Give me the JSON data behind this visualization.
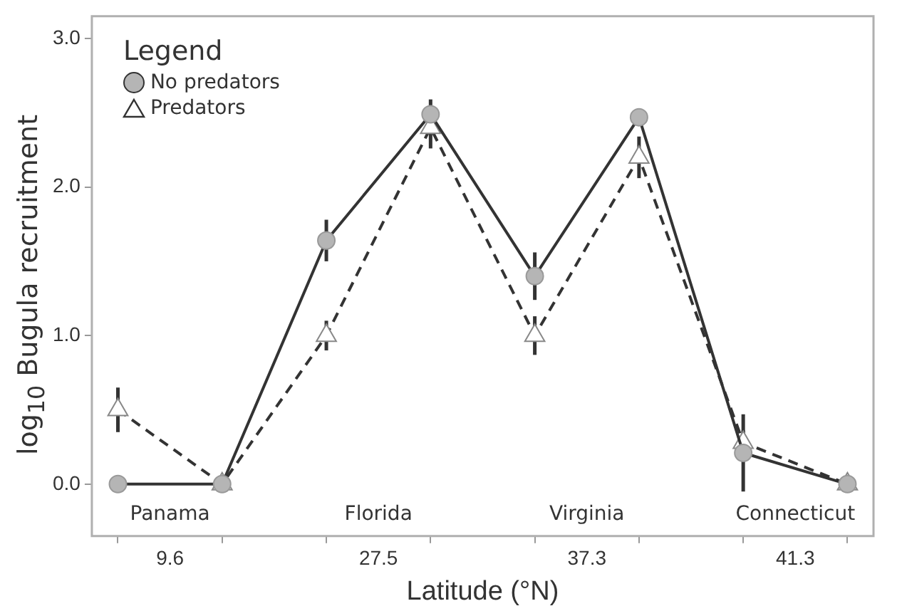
{
  "chart_data": {
    "type": "line",
    "xlabel": "Latitude (°N)",
    "ylabel": "log$_{10}$ Bugula recruitment",
    "legend_title": "Legend",
    "legend": "top left",
    "categories": [
      null,
      "9.6",
      null,
      null,
      null,
      "27.5",
      null,
      null,
      null,
      "37.3",
      null,
      null,
      null,
      "41.3",
      null
    ],
    "series": [
      {
        "name": "No predators",
        "color": "#333333",
        "marker": "circle",
        "line_style": "solid",
        "values": [
          0,
          null,
          0,
          null,
          1.64,
          null,
          2.49,
          null,
          1.4,
          null,
          2.47,
          null,
          0.21,
          null,
          0
        ],
        "errors": [
          null,
          null,
          null,
          null,
          0.14,
          null,
          0.1,
          null,
          0.16,
          null,
          null,
          null,
          0.26,
          null,
          null
        ]
      },
      {
        "name": "Predators",
        "color": "#333333",
        "marker": "triangle",
        "line_style": "dashed",
        "values": [
          0.5,
          null,
          0,
          null,
          1,
          null,
          2.4,
          null,
          1,
          null,
          2.2,
          null,
          0.28,
          null,
          0
        ],
        "errors": [
          0.15,
          null,
          null,
          null,
          0.1,
          null,
          0.14,
          null,
          0.13,
          null,
          0.14,
          null,
          0.08,
          null,
          null
        ]
      }
    ],
    "ylim": [
      -0.35,
      3.15
    ],
    "yticks": [
      {
        "value": 0,
        "label": "0.0"
      },
      {
        "value": 1,
        "label": "1.0"
      },
      {
        "value": 2,
        "label": "2.0"
      },
      {
        "value": 3,
        "label": "3.0"
      }
    ],
    "grid": false,
    "annotations": [
      "Panama",
      "Florida",
      "Virginia",
      "Connecticut"
    ]
  }
}
